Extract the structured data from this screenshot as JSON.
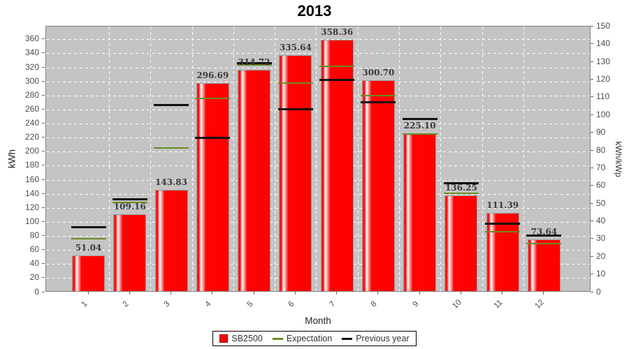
{
  "chart_data": {
    "type": "bar",
    "title": "2013",
    "categories": [
      "1",
      "2",
      "3",
      "4",
      "5",
      "6",
      "7",
      "8",
      "9",
      "10",
      "11",
      "12"
    ],
    "series": [
      {
        "name": "SB2500",
        "type": "bar",
        "color": "#ff0000",
        "values": [
          51.04,
          109.16,
          143.83,
          296.69,
          314.72,
          335.64,
          358.36,
          300.7,
          225.1,
          136.25,
          111.39,
          73.64
        ],
        "data_labels_shown": true
      },
      {
        "name": "Expectation",
        "type": "tick-line",
        "color": "#6b8c21",
        "estimated": true,
        "values": [
          75,
          126,
          204,
          274,
          322,
          296,
          320,
          278,
          224,
          139,
          85,
          68
        ]
      },
      {
        "name": "Previous year",
        "type": "tick-line",
        "color": "#111111",
        "estimated": true,
        "values": [
          91,
          131,
          265,
          218,
          325,
          259,
          301,
          269,
          245,
          154,
          96,
          79
        ]
      }
    ],
    "left_axis": {
      "label": "kWh",
      "min": 0,
      "max": 360,
      "step": 20
    },
    "right_axis": {
      "label": "kWh/kWp",
      "min": 0,
      "max": 150,
      "step": 10
    },
    "x_axis": {
      "label": "Month",
      "tick_label_rotation_deg": -45
    },
    "grid": {
      "horizontal": true,
      "vertical": true,
      "style": "white-dashed"
    },
    "plot_background": "#c4c4c4",
    "legend_position": "bottom"
  }
}
